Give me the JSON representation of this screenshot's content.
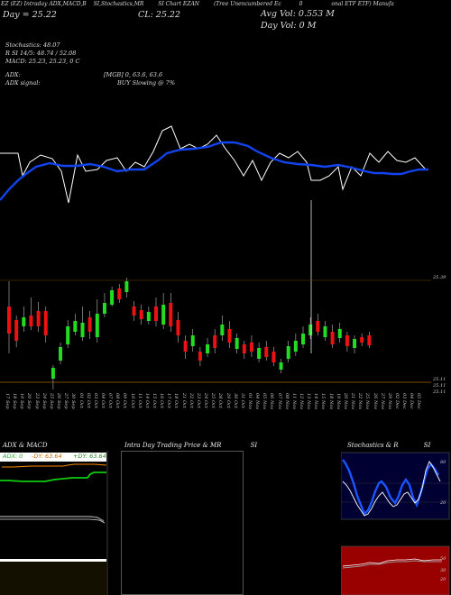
{
  "header": {
    "line1_a": "EZ (EZ) Intraday ADX,MACD,B",
    "line1_b": "SI,Stochastics,MR",
    "line1_c": "SI Chart EZAN",
    "line1_d": "(Tree Unencumbered Ec",
    "line1_e": "0",
    "line1_f": "onal ETF ETF) Manufa",
    "day_label": "Day = 25.22",
    "cl_label": "CL: 25.22",
    "avg_vol": "Avg Vol: 0.553 M",
    "day_vol": "Day Vol: 0   M",
    "stochastics": "Stochastics: 48.07",
    "rsi": "R  SI 14/5: 48.74  / 52.08",
    "macd": "MACD: 25.23,  25.23,  0  C",
    "adx": "ADX:",
    "adx_values": "[MGB] 0,  63.6,  63.6",
    "adx_signal": "ADX  signal:",
    "buy_signal": "BUY Slowing @ 7%"
  },
  "price_axis": {
    "top": "25.39",
    "bottom_1": "25.11",
    "bottom_2": "25.11",
    "bottom_3": "25.11"
  },
  "dates": [
    "17 Sep",
    "18 Sep",
    "19 Sep",
    "20 Sep",
    "23 Sep",
    "24 Sep",
    "25 Sep",
    "26 Sep",
    "27 Sep",
    "30 Sep",
    "01 Oct",
    "02 Oct",
    "03 Oct",
    "04 Oct",
    "07 Oct",
    "08 Oct",
    "09 Oct",
    "10 Oct",
    "11 Oct",
    "14 Oct",
    "15 Oct",
    "16 Oct",
    "17 Oct",
    "18 Oct",
    "21 Oct",
    "22 Oct",
    "23 Oct",
    "24 Oct",
    "25 Oct",
    "28 Oct",
    "29 Oct",
    "30 Oct",
    "31 Oct",
    "01 Nov",
    "04 Nov",
    "05 Nov",
    "06 Nov",
    "07 Nov",
    "08 Nov",
    "11 Nov",
    "12 Nov",
    "13 Nov",
    "14 Nov",
    "15 Nov",
    "18 Nov",
    "19 Nov",
    "20 Nov",
    "21 Nov",
    "22 Nov",
    "25 Nov",
    "26 Nov",
    "27 Nov",
    "29 Nov",
    "02 Dec",
    "03 Dec",
    "04 Dec",
    "05 Dec"
  ],
  "panels": {
    "adx_macd": {
      "title": "ADX  & MACD",
      "adx_label": "ADX: 0",
      "dy_minus_label": "-DY: 63.64",
      "dy_plus_label": "+DY: 63.64"
    },
    "intraday": {
      "title": "Intra  Day Trading Price  & MR",
      "title_b": "SI"
    },
    "stoch_rsi": {
      "title": "Stochastics & R",
      "title_b": "SI",
      "axis_top": [
        "80",
        "20"
      ],
      "axis_bottom": [
        "50",
        "30",
        "20"
      ]
    }
  },
  "colors": {
    "up": "#22dd22",
    "down": "#ee1111",
    "blue": "#1144ee",
    "panel_red": "#990000",
    "orange": "#ff8800"
  }
}
